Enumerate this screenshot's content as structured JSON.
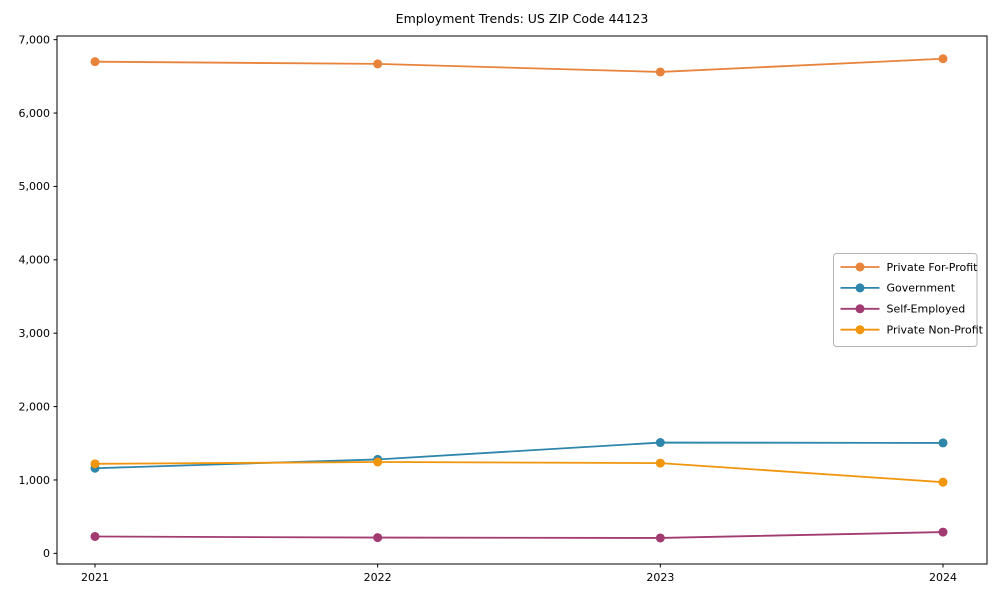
{
  "chart_data": {
    "type": "line",
    "title": "Employment Trends: US ZIP Code 44123",
    "categories": [
      "2021",
      "2022",
      "2023",
      "2024"
    ],
    "x": [
      2021,
      2022,
      2023,
      2024
    ],
    "series": [
      {
        "name": "Private For-Profit",
        "color": "#E8833C",
        "values": [
          6700,
          6670,
          6560,
          6740
        ]
      },
      {
        "name": "Government",
        "color": "#2E86AB",
        "values": [
          1160,
          1280,
          1510,
          1505
        ]
      },
      {
        "name": "Self-Employed",
        "color": "#A23B72",
        "values": [
          230,
          215,
          210,
          290
        ]
      },
      {
        "name": "Private Non-Profit",
        "color": "#F0950C",
        "values": [
          1220,
          1245,
          1230,
          970
        ]
      }
    ],
    "ylim": [
      -145,
      7050
    ],
    "yticks": [
      0,
      1000,
      2000,
      3000,
      4000,
      5000,
      6000,
      7000
    ],
    "ytick_labels": [
      "0",
      "1,000",
      "2,000",
      "3,000",
      "4,000",
      "5,000",
      "6,000",
      "7,000"
    ],
    "xlabel": "",
    "ylabel": "",
    "grid": false,
    "legend_position": "center right",
    "axis_color": "#000000",
    "legend_border_color": "#b3b3b3",
    "background_color": "#ffffff"
  }
}
